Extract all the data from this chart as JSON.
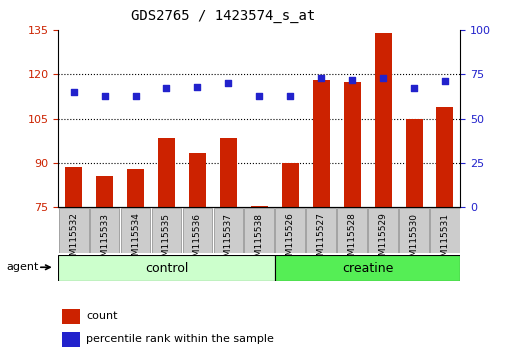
{
  "title": "GDS2765 / 1423574_s_at",
  "categories": [
    "GSM115532",
    "GSM115533",
    "GSM115534",
    "GSM115535",
    "GSM115536",
    "GSM115537",
    "GSM115538",
    "GSM115526",
    "GSM115527",
    "GSM115528",
    "GSM115529",
    "GSM115530",
    "GSM115531"
  ],
  "bar_values": [
    88.5,
    85.5,
    88.0,
    98.5,
    93.5,
    98.5,
    75.5,
    90.0,
    118.0,
    117.5,
    134.0,
    105.0,
    109.0
  ],
  "dot_values": [
    65,
    63,
    63,
    67,
    68,
    70,
    63,
    63,
    73,
    72,
    73,
    67,
    71
  ],
  "bar_color": "#cc2200",
  "dot_color": "#2222cc",
  "ylim_left": [
    75,
    135
  ],
  "ylim_right": [
    0,
    100
  ],
  "yticks_left": [
    75,
    90,
    105,
    120,
    135
  ],
  "yticks_right": [
    0,
    25,
    50,
    75,
    100
  ],
  "group_labels": [
    "control",
    "creatine"
  ],
  "control_color": "#ccffcc",
  "creatine_color": "#55ee55",
  "agent_label": "agent",
  "legend_count": "count",
  "legend_percentile": "percentile rank within the sample",
  "tick_bg_color": "#cccccc",
  "n_control": 7,
  "n_creatine": 6
}
